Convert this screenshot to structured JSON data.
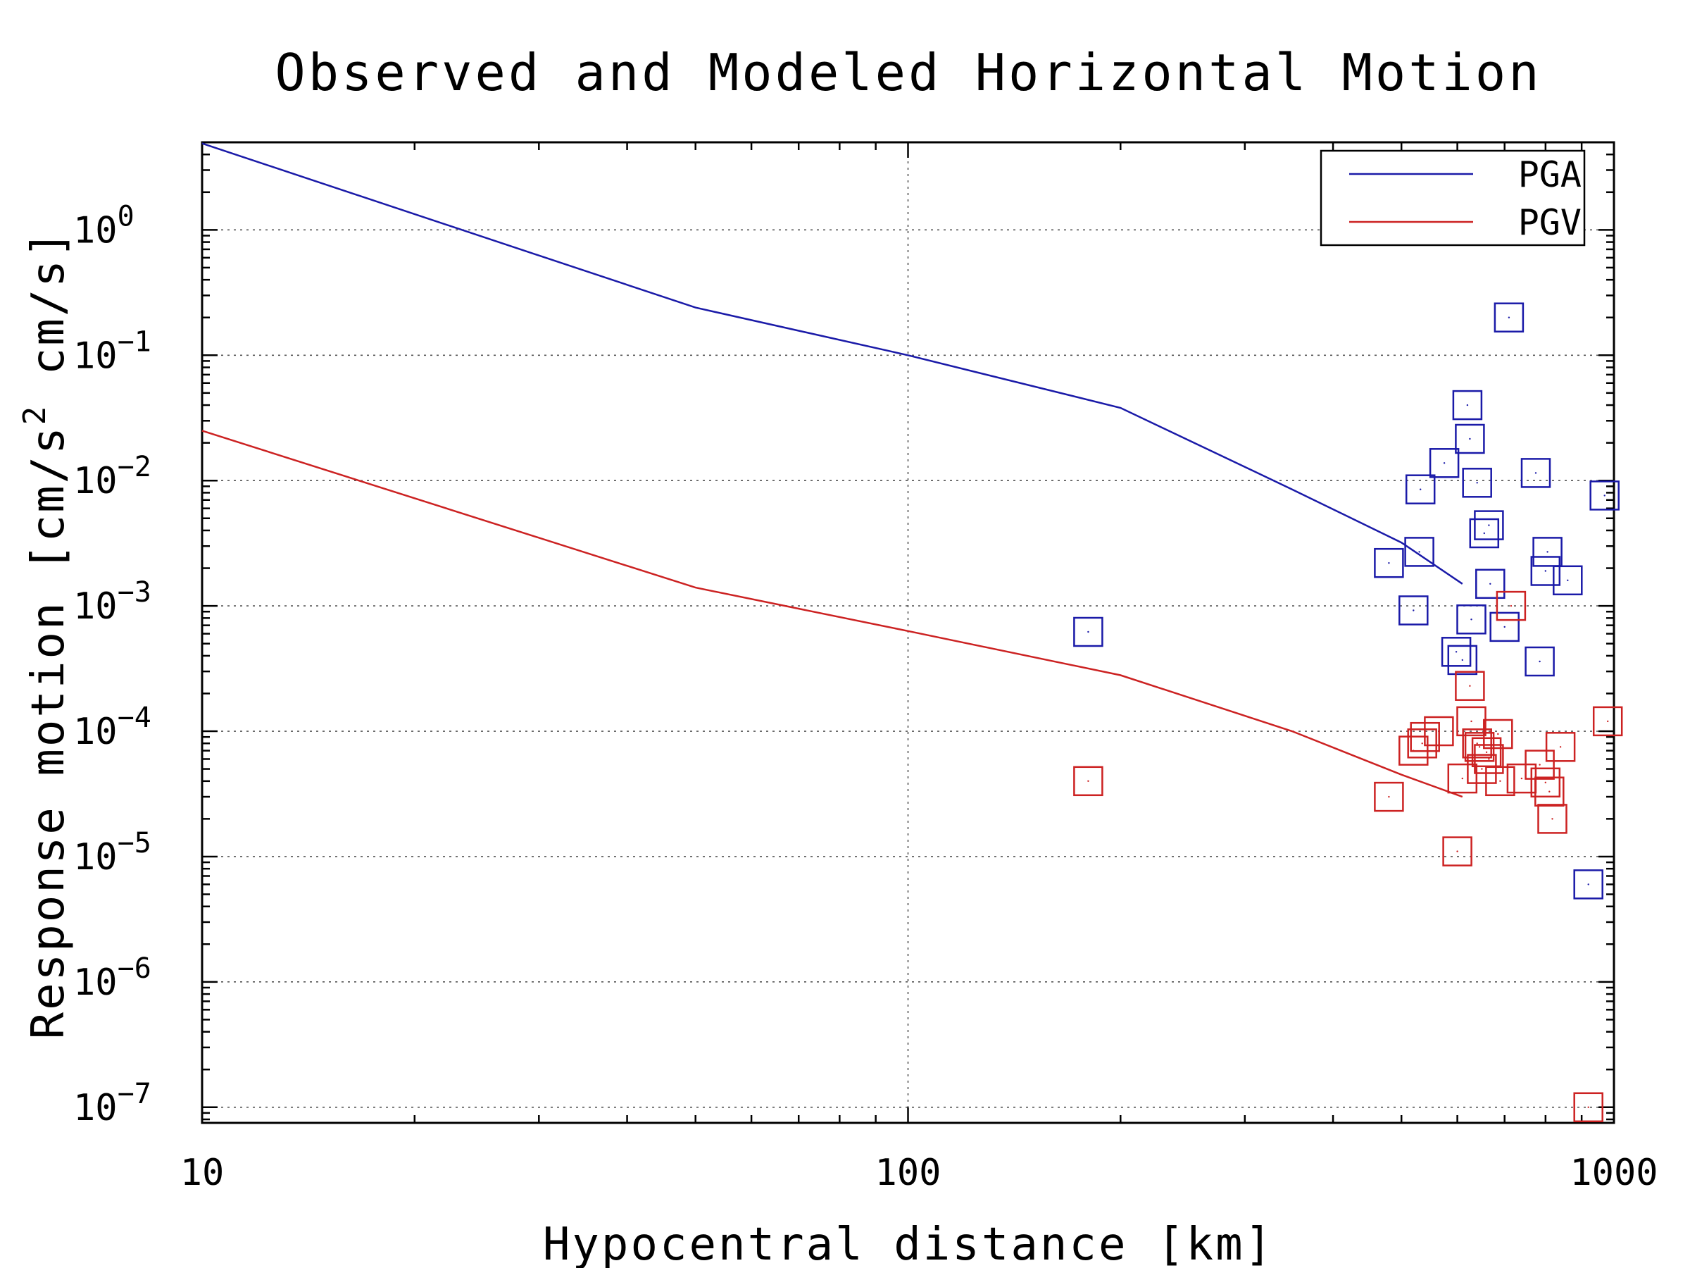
{
  "chart_data": {
    "type": "scatter",
    "title": "Observed and Modeled Horizontal Motion",
    "xlabel": "Hypocentral distance [km]",
    "ylabel": {
      "text_before": "Response motion  [cm/s",
      "superscript": "2",
      "text_after": "  cm/s]"
    },
    "x_scale": "log",
    "y_scale": "log",
    "xlim": [
      10,
      1000
    ],
    "ylim": [
      7.5e-08,
      5
    ],
    "grid": true,
    "legend_position": "top-right",
    "x_ticks": [
      {
        "value": 10,
        "label": "10"
      },
      {
        "value": 100,
        "label": "100"
      },
      {
        "value": 1000,
        "label": "1000"
      }
    ],
    "y_ticks": [
      {
        "value": 1,
        "base": "10",
        "exponent": "0"
      },
      {
        "value": 0.1,
        "base": "10",
        "exponent": "−1"
      },
      {
        "value": 0.01,
        "base": "10",
        "exponent": "−2"
      },
      {
        "value": 0.001,
        "base": "10",
        "exponent": "−3"
      },
      {
        "value": 0.0001,
        "base": "10",
        "exponent": "−4"
      },
      {
        "value": 1e-05,
        "base": "10",
        "exponent": "−5"
      },
      {
        "value": 1e-06,
        "base": "10",
        "exponent": "−6"
      },
      {
        "value": 1e-07,
        "base": "10",
        "exponent": "−7"
      }
    ],
    "series": [
      {
        "name": "PGA",
        "color": "#1a1aa8",
        "model_line": [
          [
            10,
            4.9
          ],
          [
            50,
            0.24
          ],
          [
            100,
            0.1
          ],
          [
            200,
            0.038
          ],
          [
            350,
            0.0085
          ],
          [
            500,
            0.0032
          ],
          [
            610,
            0.0015
          ]
        ],
        "observed": [
          [
            180,
            0.00062
          ],
          [
            480,
            0.0022
          ],
          [
            520,
            0.00092
          ],
          [
            530,
            0.0027
          ],
          [
            532,
            0.0085
          ],
          [
            575,
            0.0138
          ],
          [
            598,
            0.00043
          ],
          [
            610,
            0.00037
          ],
          [
            620,
            0.04
          ],
          [
            625,
            0.0215
          ],
          [
            628,
            0.00078
          ],
          [
            640,
            0.0096
          ],
          [
            655,
            0.0038
          ],
          [
            665,
            0.0044
          ],
          [
            668,
            0.0015
          ],
          [
            700,
            0.00068
          ],
          [
            710,
            0.2
          ],
          [
            775,
            0.0115
          ],
          [
            785,
            0.00036
          ],
          [
            800,
            0.0019
          ],
          [
            805,
            0.0027
          ],
          [
            860,
            0.0016
          ],
          [
            920,
            6e-06
          ],
          [
            970,
            0.0076
          ]
        ]
      },
      {
        "name": "PGV",
        "color": "#cc2222",
        "model_line": [
          [
            10,
            0.025
          ],
          [
            50,
            0.0014
          ],
          [
            100,
            0.00063
          ],
          [
            200,
            0.00028
          ],
          [
            350,
            0.0001
          ],
          [
            500,
            4.5e-05
          ],
          [
            610,
            3e-05
          ]
        ],
        "observed": [
          [
            180,
            4e-05
          ],
          [
            480,
            3e-05
          ],
          [
            520,
            7e-05
          ],
          [
            535,
            8e-05
          ],
          [
            540,
            9e-05
          ],
          [
            565,
            0.0001
          ],
          [
            600,
            1.1e-05
          ],
          [
            610,
            4.2e-05
          ],
          [
            625,
            0.00023
          ],
          [
            628,
            0.00012
          ],
          [
            640,
            8e-05
          ],
          [
            645,
            7.5e-05
          ],
          [
            650,
            5e-05
          ],
          [
            660,
            6.8e-05
          ],
          [
            665,
            6e-05
          ],
          [
            685,
            9.5e-05
          ],
          [
            690,
            4e-05
          ],
          [
            715,
            0.001
          ],
          [
            740,
            4.2e-05
          ],
          [
            785,
            5.4e-05
          ],
          [
            800,
            3.9e-05
          ],
          [
            810,
            3.3e-05
          ],
          [
            818,
            2e-05
          ],
          [
            840,
            7.5e-05
          ],
          [
            920,
            1e-07
          ],
          [
            980,
            0.00012
          ]
        ]
      }
    ]
  }
}
